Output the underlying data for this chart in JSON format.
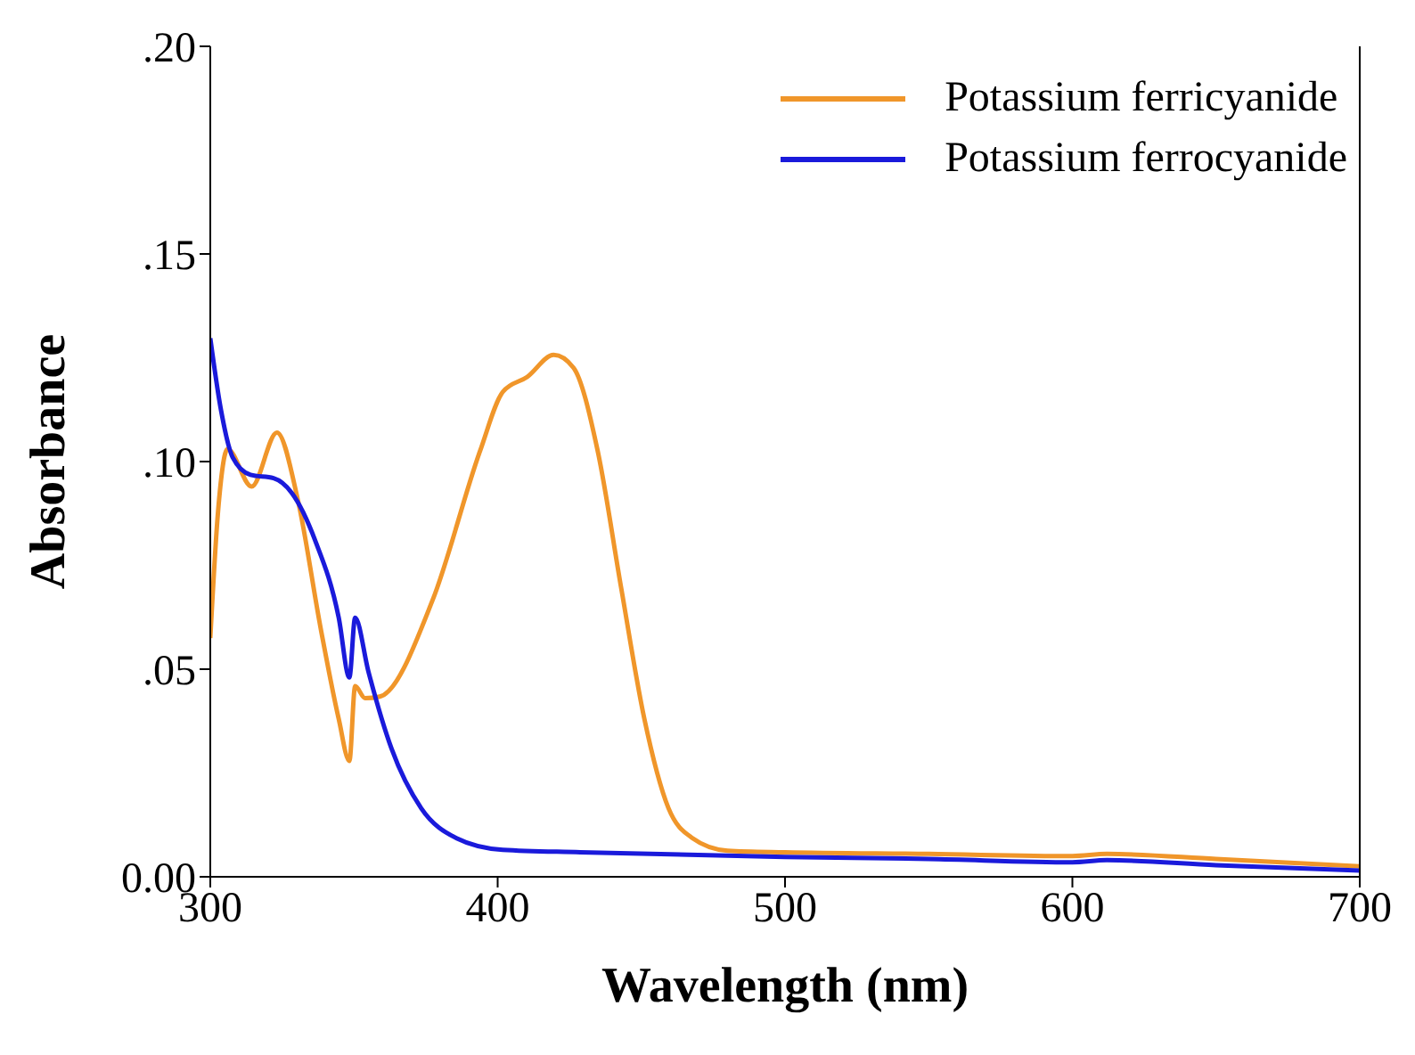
{
  "chart_data": {
    "type": "line",
    "xlabel": "Wavelength (nm)",
    "ylabel": "Absorbance",
    "xlim": [
      300,
      700
    ],
    "xticks": [
      300,
      400,
      500,
      600,
      700
    ],
    "ylim": [
      0,
      0.2
    ],
    "yticks": [
      {
        "value": 0,
        "label": "0.00"
      },
      {
        "value": 0.05,
        "label": ".05"
      },
      {
        "value": 0.1,
        "label": ".10"
      },
      {
        "value": 0.15,
        "label": ".15"
      },
      {
        "value": 0.2,
        "label": ".20"
      }
    ],
    "grid": false,
    "legend": "top right",
    "marker": "none",
    "line_style": "solid",
    "series": [
      {
        "name": "Potassium ferricyanide",
        "color": "#f0962a",
        "x": [
          300,
          302.7,
          306,
          314.4,
          323.2,
          330.4,
          338.5,
          344.7,
          348.4,
          350.4,
          353.9,
          359,
          377.4,
          393.9,
          401.8,
          410.3,
          419.5,
          426.4,
          434.8,
          443,
          451,
          459.4,
          467.6,
          480,
          500,
          550,
          600,
          612,
          650,
          700
        ],
        "values": [
          0.0575,
          0.088,
          0.103,
          0.094,
          0.107,
          0.091,
          0.0595,
          0.038,
          0.0279,
          0.0459,
          0.043,
          0.0434,
          0.0667,
          0.1026,
          0.1168,
          0.1204,
          0.1257,
          0.1226,
          0.1026,
          0.0695,
          0.0382,
          0.0166,
          0.0094,
          0.0063,
          0.0059,
          0.0055,
          0.005,
          0.0055,
          0.0043,
          0.0025
        ]
      },
      {
        "name": "Potassium ferrocyanide",
        "color": "#1a1adb",
        "x": [
          300,
          303.7,
          307.8,
          314,
          322,
          328.3,
          336.5,
          344.7,
          348.4,
          350.4,
          355,
          363.1,
          373.4,
          385.7,
          401.8,
          428.7,
          500,
          550,
          600,
          612,
          650,
          700
        ],
        "values": [
          0.1297,
          0.1125,
          0.101,
          0.0968,
          0.096,
          0.0925,
          0.081,
          0.0624,
          0.048,
          0.0624,
          0.0495,
          0.0308,
          0.0165,
          0.0093,
          0.0065,
          0.0059,
          0.0048,
          0.0043,
          0.0035,
          0.004,
          0.0028,
          0.0015
        ]
      }
    ]
  }
}
